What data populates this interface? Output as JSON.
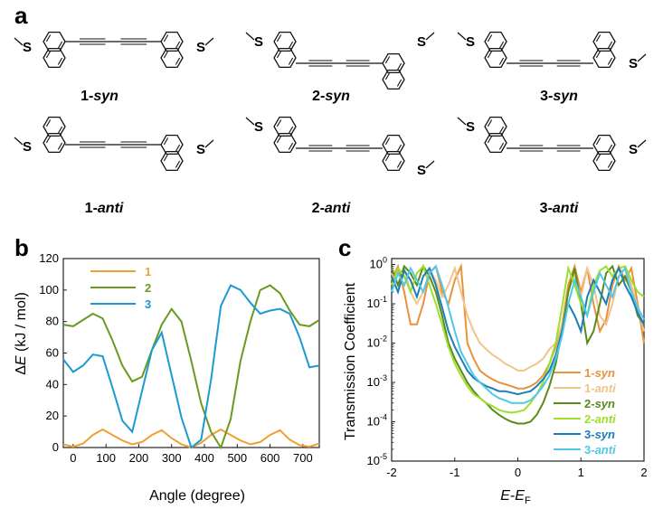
{
  "panels": {
    "a": "a",
    "b": "b",
    "c": "c"
  },
  "molecules": [
    {
      "num": "1",
      "conf": "syn"
    },
    {
      "num": "2",
      "conf": "syn"
    },
    {
      "num": "3",
      "conf": "syn"
    },
    {
      "num": "1",
      "conf": "anti"
    },
    {
      "num": "2",
      "conf": "anti"
    },
    {
      "num": "3",
      "conf": "anti"
    }
  ],
  "atom_label": "S",
  "chart_data": [
    {
      "type": "line",
      "panel": "b",
      "xlabel": "Angle (degree)",
      "ylabel_prefix": "Δ",
      "ylabel_var": "E",
      "ylabel_unit": " (kJ / mol)",
      "xlim": [
        -30,
        750
      ],
      "ylim": [
        0,
        120
      ],
      "xticks": [
        0,
        100,
        200,
        300,
        400,
        500,
        600,
        700
      ],
      "yticks": [
        0,
        20,
        40,
        60,
        80,
        100,
        120
      ],
      "legend_position": "top-left",
      "series": [
        {
          "name": "1",
          "color": "#f0a030",
          "x": [
            -30,
            0,
            30,
            60,
            90,
            120,
            150,
            180,
            210,
            240,
            270,
            300,
            330,
            360,
            390,
            420,
            450,
            480,
            510,
            540,
            570,
            600,
            630,
            660,
            690,
            720,
            750
          ],
          "y": [
            2,
            0.5,
            2.5,
            8,
            11.5,
            8,
            4.5,
            2,
            3.5,
            8,
            11,
            6,
            2,
            0,
            3,
            8,
            11.5,
            8,
            4.5,
            2,
            3.5,
            8,
            11,
            5,
            1.5,
            0.5,
            2.5
          ]
        },
        {
          "name": "2",
          "color": "#6a9a1f",
          "x": [
            -30,
            0,
            30,
            60,
            90,
            120,
            150,
            180,
            210,
            240,
            270,
            300,
            330,
            360,
            390,
            420,
            450,
            480,
            510,
            540,
            570,
            600,
            630,
            660,
            690,
            720,
            750
          ],
          "y": [
            78,
            77,
            81,
            85,
            82,
            68,
            52,
            42,
            45,
            62,
            78,
            88,
            80,
            55,
            28,
            10,
            0,
            18,
            55,
            80,
            100,
            103,
            98,
            87,
            78,
            77,
            81
          ]
        },
        {
          "name": "3",
          "color": "#1a9bd0",
          "x": [
            -30,
            0,
            30,
            60,
            90,
            120,
            150,
            180,
            210,
            240,
            270,
            300,
            330,
            360,
            390,
            420,
            450,
            480,
            510,
            540,
            570,
            600,
            630,
            660,
            690,
            720,
            750
          ],
          "y": [
            56,
            48,
            52,
            59,
            58,
            38,
            17,
            10,
            36,
            62,
            73,
            46,
            19,
            0,
            5,
            43,
            90,
            103,
            100,
            92,
            85,
            87,
            88,
            85,
            70,
            51,
            52
          ]
        }
      ]
    },
    {
      "type": "line",
      "panel": "c",
      "xlabel_main": "E",
      "xlabel_sep": "-",
      "xlabel_var": "E",
      "xlabel_sub": "F",
      "ylabel": "Transmission Coefficient",
      "xlim": [
        -2,
        2
      ],
      "ylim_log10": [
        -5,
        0.15
      ],
      "log_y": true,
      "xticks": [
        -2,
        -1,
        0,
        1,
        2
      ],
      "yticks": [
        {
          "base": "10",
          "exp": "0",
          "p": 0
        },
        {
          "base": "10",
          "exp": "-1",
          "p": -1
        },
        {
          "base": "10",
          "exp": "-2",
          "p": -2
        },
        {
          "base": "10",
          "exp": "-3",
          "p": -3
        },
        {
          "base": "10",
          "exp": "-4",
          "p": -4
        },
        {
          "base": "10",
          "exp": "-5",
          "p": -5
        }
      ],
      "legend_position": "bottom-right",
      "series": [
        {
          "name_num": "1-",
          "name_conf": "syn",
          "color": "#e8923a",
          "x": [
            -2,
            -1.9,
            -1.8,
            -1.7,
            -1.6,
            -1.5,
            -1.4,
            -1.3,
            -1.2,
            -1.1,
            -1.0,
            -0.9,
            -0.8,
            -0.7,
            -0.6,
            -0.5,
            -0.4,
            -0.3,
            -0.2,
            -0.1,
            0,
            0.1,
            0.2,
            0.3,
            0.4,
            0.5,
            0.6,
            0.7,
            0.8,
            0.9,
            1.0,
            1.1,
            1.2,
            1.3,
            1.4,
            1.5,
            1.6,
            1.7,
            1.8,
            1.9,
            2.0
          ],
          "y": [
            0.4,
            0.9,
            0.2,
            0.03,
            0.03,
            0.1,
            0.6,
            0.9,
            0.2,
            0.1,
            0.4,
            0.9,
            0.01,
            0.004,
            0.002,
            0.0015,
            0.0012,
            0.001,
            0.0009,
            0.0008,
            0.0007,
            0.0007,
            0.0008,
            0.001,
            0.0015,
            0.003,
            0.008,
            0.03,
            0.3,
            0.9,
            0.2,
            0.8,
            0.1,
            0.02,
            0.04,
            0.3,
            0.9,
            0.4,
            0.8,
            0.1,
            0.01
          ]
        },
        {
          "name_num": "1-",
          "name_conf": "anti",
          "color": "#f2c38a",
          "x": [
            -2,
            -1.9,
            -1.8,
            -1.7,
            -1.6,
            -1.5,
            -1.4,
            -1.3,
            -1.2,
            -1.1,
            -1.0,
            -0.9,
            -0.8,
            -0.7,
            -0.6,
            -0.5,
            -0.4,
            -0.3,
            -0.2,
            -0.1,
            0,
            0.1,
            0.2,
            0.3,
            0.4,
            0.5,
            0.6,
            0.7,
            0.8,
            0.9,
            1.0,
            1.1,
            1.2,
            1.3,
            1.4,
            1.5,
            1.6,
            1.7,
            1.8,
            1.9,
            2.0
          ],
          "y": [
            0.6,
            0.3,
            0.8,
            0.2,
            0.1,
            0.2,
            0.7,
            0.4,
            0.15,
            0.3,
            0.8,
            0.2,
            0.05,
            0.02,
            0.01,
            0.007,
            0.005,
            0.004,
            0.003,
            0.0025,
            0.002,
            0.002,
            0.0025,
            0.003,
            0.004,
            0.007,
            0.01,
            0.03,
            0.2,
            0.6,
            0.15,
            0.8,
            0.3,
            0.05,
            0.03,
            0.1,
            0.5,
            0.8,
            0.3,
            0.08,
            0.02
          ]
        },
        {
          "name_num": "2-",
          "name_conf": "syn",
          "color": "#5a8a1a",
          "x": [
            -2,
            -1.9,
            -1.8,
            -1.7,
            -1.6,
            -1.5,
            -1.4,
            -1.3,
            -1.2,
            -1.1,
            -1.0,
            -0.9,
            -0.8,
            -0.7,
            -0.6,
            -0.5,
            -0.4,
            -0.3,
            -0.2,
            -0.1,
            0,
            0.1,
            0.2,
            0.3,
            0.4,
            0.5,
            0.6,
            0.7,
            0.8,
            0.9,
            1.0,
            1.1,
            1.2,
            1.3,
            1.4,
            1.5,
            1.6,
            1.7,
            1.8,
            1.9,
            2.0
          ],
          "y": [
            0.8,
            0.3,
            0.9,
            0.6,
            0.3,
            0.9,
            0.5,
            0.2,
            0.05,
            0.01,
            0.004,
            0.002,
            0.001,
            0.0006,
            0.0004,
            0.0003,
            0.0002,
            0.00015,
            0.00012,
            0.0001,
            9e-05,
            9e-05,
            0.0001,
            0.00015,
            0.0003,
            0.0008,
            0.003,
            0.02,
            0.2,
            0.8,
            0.1,
            0.01,
            0.02,
            0.1,
            0.6,
            0.9,
            0.3,
            0.5,
            0.2,
            0.05,
            0.03
          ]
        },
        {
          "name_num": "2-",
          "name_conf": "anti",
          "color": "#9be02a",
          "x": [
            -2,
            -1.9,
            -1.8,
            -1.7,
            -1.6,
            -1.5,
            -1.4,
            -1.3,
            -1.2,
            -1.1,
            -1.0,
            -0.9,
            -0.8,
            -0.7,
            -0.6,
            -0.5,
            -0.4,
            -0.3,
            -0.2,
            -0.1,
            0,
            0.1,
            0.2,
            0.3,
            0.4,
            0.5,
            0.6,
            0.7,
            0.8,
            0.9,
            1.0,
            1.1,
            1.2,
            1.3,
            1.4,
            1.5,
            1.6,
            1.7,
            1.8,
            1.9,
            2.0
          ],
          "y": [
            0.3,
            0.8,
            0.5,
            0.2,
            0.6,
            0.9,
            0.3,
            0.1,
            0.03,
            0.008,
            0.003,
            0.0015,
            0.0008,
            0.0005,
            0.0004,
            0.0003,
            0.00025,
            0.0002,
            0.00018,
            0.00017,
            0.00018,
            0.0002,
            0.0003,
            0.0005,
            0.001,
            0.003,
            0.01,
            0.08,
            0.8,
            0.3,
            0.1,
            0.05,
            0.3,
            0.7,
            0.9,
            0.5,
            0.8,
            0.9,
            0.4,
            0.2,
            0.15
          ]
        },
        {
          "name_num": "3-",
          "name_conf": "syn",
          "color": "#1a7fb8",
          "x": [
            -2,
            -1.9,
            -1.8,
            -1.7,
            -1.6,
            -1.5,
            -1.4,
            -1.3,
            -1.2,
            -1.1,
            -1.0,
            -0.9,
            -0.8,
            -0.7,
            -0.6,
            -0.5,
            -0.4,
            -0.3,
            -0.2,
            -0.1,
            0,
            0.1,
            0.2,
            0.3,
            0.4,
            0.5,
            0.6,
            0.7,
            0.8,
            0.9,
            1.0,
            1.1,
            1.2,
            1.3,
            1.4,
            1.5,
            1.6,
            1.7,
            1.8,
            1.9,
            2.0
          ],
          "y": [
            0.5,
            0.2,
            0.7,
            0.4,
            0.15,
            0.5,
            0.8,
            0.3,
            0.08,
            0.02,
            0.008,
            0.004,
            0.002,
            0.0013,
            0.001,
            0.0008,
            0.0007,
            0.0006,
            0.0006,
            0.00055,
            0.0005,
            0.00055,
            0.0006,
            0.0008,
            0.0012,
            0.002,
            0.005,
            0.02,
            0.1,
            0.05,
            0.02,
            0.15,
            0.4,
            0.2,
            0.1,
            0.4,
            0.8,
            0.3,
            0.15,
            0.06,
            0.03
          ]
        },
        {
          "name_num": "3-",
          "name_conf": "anti",
          "color": "#4fc8ea",
          "x": [
            -2,
            -1.9,
            -1.8,
            -1.7,
            -1.6,
            -1.5,
            -1.4,
            -1.3,
            -1.2,
            -1.1,
            -1.0,
            -0.9,
            -0.8,
            -0.7,
            -0.6,
            -0.5,
            -0.4,
            -0.3,
            -0.2,
            -0.1,
            0,
            0.1,
            0.2,
            0.3,
            0.4,
            0.5,
            0.6,
            0.7,
            0.8,
            0.9,
            1.0,
            1.1,
            1.2,
            1.3,
            1.4,
            1.5,
            1.6,
            1.7,
            1.8,
            1.9,
            2.0
          ],
          "y": [
            0.2,
            0.6,
            0.3,
            0.8,
            0.4,
            0.2,
            0.6,
            0.9,
            0.3,
            0.08,
            0.02,
            0.006,
            0.003,
            0.0015,
            0.001,
            0.0007,
            0.0005,
            0.0004,
            0.00035,
            0.0003,
            0.0003,
            0.0003,
            0.00035,
            0.0005,
            0.0008,
            0.0015,
            0.004,
            0.015,
            0.1,
            0.4,
            0.15,
            0.05,
            0.2,
            0.6,
            0.3,
            0.15,
            0.5,
            0.8,
            0.2,
            0.08,
            0.04
          ]
        }
      ]
    }
  ]
}
